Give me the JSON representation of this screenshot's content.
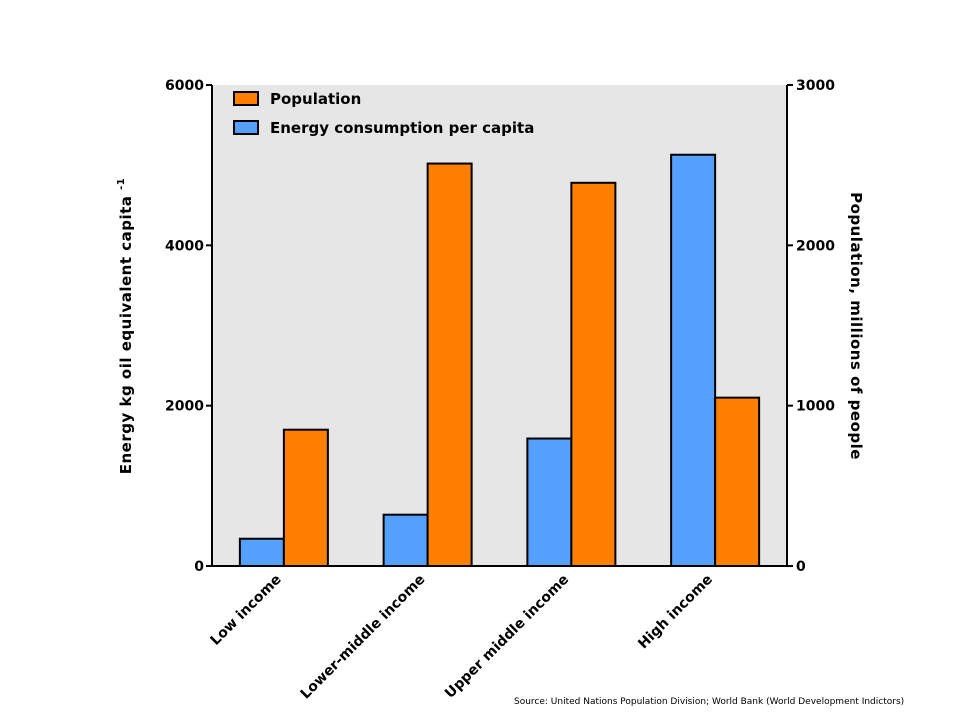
{
  "chart_data": {
    "type": "bar",
    "categories": [
      "Low income",
      "Lower-middle income",
      "Upper middle income",
      "High income"
    ],
    "series": [
      {
        "name": "Energy consumption per capita",
        "axis": "left",
        "color": "#55A0FF",
        "values": [
          340,
          640,
          1590,
          5130
        ]
      },
      {
        "name": "Population",
        "axis": "right",
        "color": "#FF8000",
        "values": [
          850,
          2510,
          2390,
          1050
        ]
      }
    ],
    "legend_order": [
      1,
      0
    ],
    "legend_position": "top-left",
    "y_left": {
      "label": "Energy kg oil equivalent capita",
      "label_superscript": "-1",
      "ylim": [
        0,
        6000
      ],
      "ticks": [
        0,
        2000,
        4000,
        6000
      ]
    },
    "y_right": {
      "label": "Population, millions of people",
      "ylim": [
        0,
        3000
      ],
      "ticks": [
        0,
        1000,
        2000,
        3000
      ]
    },
    "plot_background": "#E6E6E6",
    "grid": false
  },
  "source_text": "Source: United Nations Population Division; World Bank (World Development Indictors)"
}
